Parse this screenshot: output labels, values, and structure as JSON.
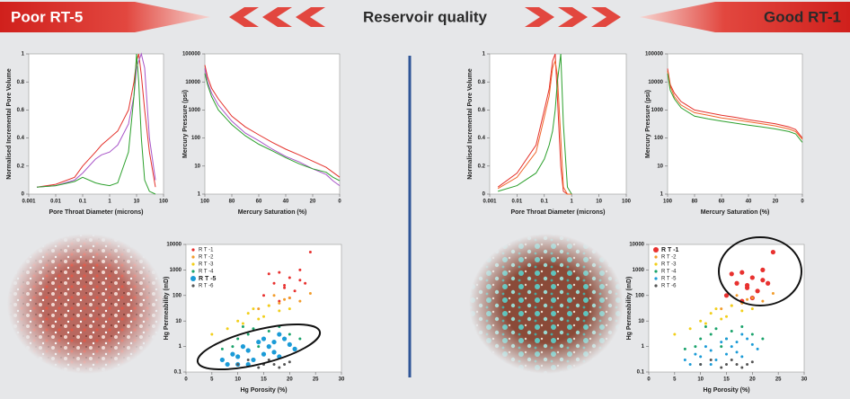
{
  "header": {
    "left": "Poor RT-5",
    "center": "Reservoir quality",
    "right": "Good RT-1"
  },
  "chart_data": [
    {
      "type": "line",
      "x_label": "Pore Throat Diameter (microns)",
      "y_label": "Normalised Incremental Pore Volume",
      "x_log": true,
      "y_log": false,
      "xlim": [
        0.001,
        100
      ],
      "ylim": [
        0,
        1
      ],
      "xticks": [
        0.001,
        0.01,
        0.1,
        1,
        10,
        100
      ],
      "yticks": [
        0,
        0.2,
        0.4,
        0.6,
        0.8,
        1
      ],
      "x": [
        0.002,
        0.01,
        0.05,
        0.1,
        0.3,
        0.5,
        1,
        2,
        5,
        8,
        10,
        12,
        15,
        20,
        30,
        50
      ],
      "series": [
        {
          "color": "#e4312b",
          "values": [
            0.05,
            0.07,
            0.12,
            0.2,
            0.3,
            0.35,
            0.4,
            0.45,
            0.6,
            0.8,
            0.95,
            1,
            0.85,
            0.6,
            0.3,
            0.05
          ]
        },
        {
          "color": "#a855c8",
          "values": [
            0.05,
            0.06,
            0.1,
            0.15,
            0.25,
            0.28,
            0.3,
            0.35,
            0.5,
            0.7,
            0.9,
            0.95,
            1,
            0.9,
            0.4,
            0.1
          ]
        },
        {
          "color": "#2ca02c",
          "values": [
            0.05,
            0.06,
            0.09,
            0.12,
            0.08,
            0.07,
            0.06,
            0.08,
            0.3,
            0.7,
            1,
            0.8,
            0.4,
            0.1,
            0.02,
            0
          ]
        }
      ]
    },
    {
      "type": "line",
      "x_label": "Mercury Saturation (%)",
      "y_label": "Mercury Pressure (psi)",
      "x_log": false,
      "y_log": true,
      "xlim": [
        100,
        0
      ],
      "ylim": [
        1,
        100000
      ],
      "xticks": [
        100,
        80,
        60,
        40,
        20,
        0
      ],
      "yticks": [
        1,
        10,
        100,
        1000,
        10000,
        100000
      ],
      "x": [
        100,
        98,
        95,
        90,
        80,
        70,
        60,
        50,
        40,
        30,
        20,
        10,
        5,
        0
      ],
      "series": [
        {
          "color": "#e4312b",
          "values": [
            40000,
            15000,
            6000,
            2500,
            600,
            250,
            130,
            70,
            40,
            25,
            15,
            9,
            6,
            4
          ]
        },
        {
          "color": "#a855c8",
          "values": [
            30000,
            10000,
            4000,
            1500,
            400,
            150,
            80,
            40,
            22,
            14,
            8,
            5,
            3,
            2
          ]
        },
        {
          "color": "#2ca02c",
          "values": [
            20000,
            8000,
            3000,
            1000,
            300,
            120,
            60,
            35,
            20,
            12,
            8,
            6,
            4,
            3
          ]
        }
      ]
    },
    {
      "type": "scatter",
      "x_label": "Hg Porosity (%)",
      "y_label": "Hg Permeability (mD)",
      "x_log": false,
      "y_log": true,
      "xlim": [
        0,
        30
      ],
      "ylim": [
        0.1,
        10000
      ],
      "xticks": [
        0,
        5,
        10,
        15,
        20,
        25,
        30
      ],
      "yticks": [
        0.1,
        1,
        10,
        100,
        1000,
        10000
      ],
      "legend": "upper left",
      "highlight": 4,
      "series": [
        {
          "name": "R T -1",
          "color": "#e8312f",
          "x": [
            15,
            17,
            18,
            19,
            20,
            21,
            22,
            23,
            24,
            18,
            20,
            22,
            16,
            19
          ],
          "values": [
            100,
            300,
            800,
            200,
            500,
            150,
            1000,
            300,
            5000,
            60,
            80,
            400,
            700,
            250
          ]
        },
        {
          "name": "R T -2",
          "color": "#f29c2b",
          "x": [
            14,
            16,
            18,
            20,
            22,
            24,
            17,
            19
          ],
          "values": [
            30,
            40,
            50,
            80,
            60,
            120,
            100,
            70
          ]
        },
        {
          "name": "R T -3",
          "color": "#f2cf1a",
          "x": [
            5,
            8,
            10,
            12,
            13,
            15,
            16,
            18,
            20,
            11,
            14
          ],
          "values": [
            3,
            5,
            10,
            20,
            30,
            15,
            40,
            25,
            30,
            8,
            12
          ]
        },
        {
          "name": "R T -4",
          "color": "#1aa36b",
          "x": [
            7,
            9,
            10,
            12,
            13,
            15,
            16,
            18,
            20,
            22,
            11,
            14
          ],
          "values": [
            0.8,
            1,
            2,
            3,
            5,
            2,
            4,
            6,
            3,
            2,
            6,
            1
          ]
        },
        {
          "name": "R T -5",
          "color": "#1b9bd7",
          "x": [
            7,
            8,
            9,
            10,
            11,
            12,
            13,
            14,
            15,
            16,
            17,
            18,
            19,
            20,
            21,
            12,
            15,
            18,
            10,
            17
          ],
          "values": [
            0.3,
            0.2,
            0.5,
            0.4,
            1,
            0.7,
            0.3,
            1.5,
            2,
            1,
            0.6,
            3,
            2,
            1.2,
            0.8,
            0.2,
            0.5,
            0.4,
            0.2,
            1.5
          ]
        },
        {
          "name": "R T -6",
          "color": "#555555",
          "x": [
            10,
            12,
            14,
            15,
            16,
            17,
            18,
            19,
            20
          ],
          "values": [
            0.2,
            0.3,
            0.15,
            0.2,
            0.3,
            0.2,
            0.15,
            0.2,
            0.25
          ]
        }
      ]
    },
    {
      "type": "line",
      "x_label": "Pore Throat Diameter (microns)",
      "y_label": "Normalised Incremental Pore Volume",
      "x_log": true,
      "y_log": false,
      "xlim": [
        0.001,
        100
      ],
      "ylim": [
        0,
        1
      ],
      "xticks": [
        0.001,
        0.01,
        0.1,
        1,
        10,
        100
      ],
      "yticks": [
        0,
        0.2,
        0.4,
        0.6,
        0.8,
        1
      ],
      "x": [
        0.002,
        0.01,
        0.05,
        0.1,
        0.15,
        0.2,
        0.25,
        0.3,
        0.4,
        0.5,
        0.7,
        1
      ],
      "series": [
        {
          "color": "#e4312b",
          "values": [
            0.05,
            0.15,
            0.35,
            0.6,
            0.75,
            0.95,
            1,
            0.7,
            0.2,
            0.02,
            0,
            0
          ]
        },
        {
          "color": "#f0642a",
          "values": [
            0.04,
            0.12,
            0.3,
            0.55,
            0.7,
            0.9,
            0.95,
            0.85,
            0.4,
            0.05,
            0,
            0
          ]
        },
        {
          "color": "#2ca02c",
          "values": [
            0.02,
            0.06,
            0.15,
            0.25,
            0.35,
            0.45,
            0.6,
            0.8,
            1,
            0.5,
            0.05,
            0
          ]
        }
      ]
    },
    {
      "type": "line",
      "x_label": "Mercury Saturation (%)",
      "y_label": "Mercury Pressure (psi)",
      "x_log": false,
      "y_log": true,
      "xlim": [
        100,
        0
      ],
      "ylim": [
        1,
        100000
      ],
      "xticks": [
        100,
        80,
        60,
        40,
        20,
        0
      ],
      "yticks": [
        1,
        10,
        100,
        1000,
        10000,
        100000
      ],
      "x": [
        100,
        98,
        95,
        90,
        80,
        70,
        60,
        50,
        40,
        30,
        20,
        10,
        5,
        0
      ],
      "series": [
        {
          "color": "#e4312b",
          "values": [
            30000,
            8000,
            4000,
            2000,
            1000,
            800,
            650,
            550,
            450,
            380,
            320,
            250,
            200,
            100
          ]
        },
        {
          "color": "#f0642a",
          "values": [
            25000,
            7000,
            3000,
            1500,
            800,
            650,
            520,
            450,
            380,
            320,
            270,
            210,
            170,
            90
          ]
        },
        {
          "color": "#2ca02c",
          "values": [
            20000,
            5000,
            2500,
            1200,
            600,
            480,
            400,
            340,
            290,
            250,
            210,
            170,
            140,
            70
          ]
        }
      ]
    },
    {
      "type": "scatter",
      "x_label": "Hg Porosity (%)",
      "y_label": "Hg Permeability (mD)",
      "x_log": false,
      "y_log": true,
      "xlim": [
        0,
        30
      ],
      "ylim": [
        0.1,
        10000
      ],
      "xticks": [
        0,
        5,
        10,
        15,
        20,
        25,
        30
      ],
      "yticks": [
        0.1,
        1,
        10,
        100,
        1000,
        10000
      ],
      "legend": "upper left",
      "highlight": 0,
      "series": [
        {
          "name": "R T -1",
          "color": "#e8312f",
          "x": [
            15,
            17,
            18,
            19,
            20,
            21,
            22,
            23,
            24,
            18,
            20,
            22,
            16,
            19
          ],
          "values": [
            100,
            300,
            800,
            200,
            500,
            150,
            1000,
            300,
            5000,
            60,
            80,
            400,
            700,
            250
          ]
        },
        {
          "name": "R T -2",
          "color": "#f29c2b",
          "x": [
            14,
            16,
            18,
            20,
            22,
            24,
            17,
            19
          ],
          "values": [
            30,
            40,
            50,
            80,
            60,
            120,
            100,
            70
          ]
        },
        {
          "name": "R T -3",
          "color": "#f2cf1a",
          "x": [
            5,
            8,
            10,
            12,
            13,
            15,
            16,
            18,
            20,
            11,
            14
          ],
          "values": [
            3,
            5,
            10,
            20,
            30,
            15,
            40,
            25,
            30,
            8,
            12
          ]
        },
        {
          "name": "R T -4",
          "color": "#1aa36b",
          "x": [
            7,
            9,
            10,
            12,
            13,
            15,
            16,
            18,
            20,
            22,
            11,
            14
          ],
          "values": [
            0.8,
            1,
            2,
            3,
            5,
            2,
            4,
            6,
            3,
            2,
            6,
            1
          ]
        },
        {
          "name": "R T -5",
          "color": "#1b9bd7",
          "x": [
            7,
            8,
            9,
            10,
            11,
            12,
            13,
            14,
            15,
            16,
            17,
            18,
            19,
            20,
            21,
            12,
            15,
            18,
            10,
            17
          ],
          "values": [
            0.3,
            0.2,
            0.5,
            0.4,
            1,
            0.7,
            0.3,
            1.5,
            2,
            1,
            0.6,
            3,
            2,
            1.2,
            0.8,
            0.2,
            0.5,
            0.4,
            0.2,
            1.5
          ]
        },
        {
          "name": "R T -6",
          "color": "#555555",
          "x": [
            10,
            12,
            14,
            15,
            16,
            17,
            18,
            19,
            20
          ],
          "values": [
            0.2,
            0.3,
            0.15,
            0.2,
            0.3,
            0.2,
            0.15,
            0.2,
            0.25
          ]
        }
      ]
    }
  ]
}
